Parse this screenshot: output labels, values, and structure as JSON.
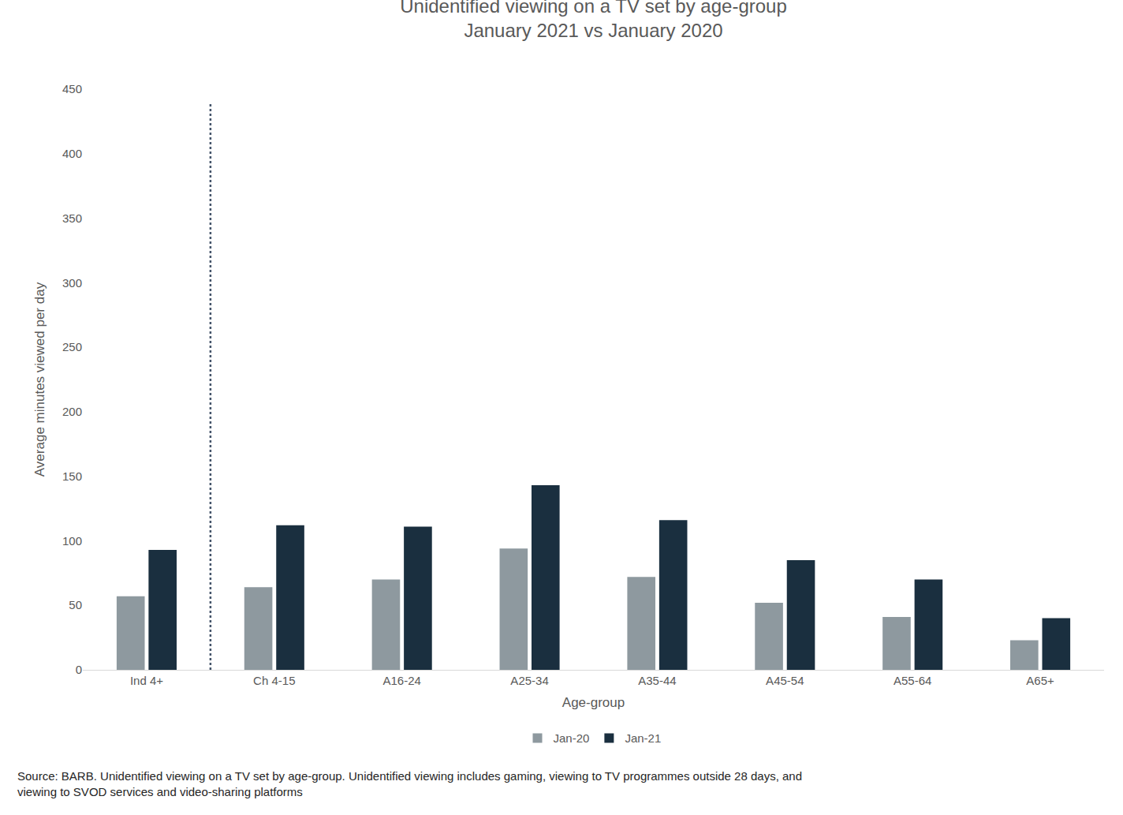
{
  "chart_data": {
    "type": "bar",
    "title": "Unidentified viewing on a TV set by age-group",
    "subtitle": "January 2021 vs January 2020",
    "x_label": "Age-group",
    "y_label": "Average minutes viewed per day",
    "categories": [
      "Ind 4+",
      "Ch 4-15",
      "A16-24",
      "A25-34",
      "A35-44",
      "A45-54",
      "A55-64",
      "A65+"
    ],
    "series": [
      {
        "name": "Jan-20",
        "color": "#8e999f",
        "values": [
          57,
          64,
          70,
          94,
          72,
          52,
          41,
          23
        ]
      },
      {
        "name": "Jan-21",
        "color": "#1a2f3f",
        "values": [
          93,
          112,
          111,
          143,
          116,
          85,
          70,
          40
        ]
      }
    ],
    "ylim": [
      0,
      450
    ],
    "yticks": [
      0,
      50,
      100,
      150,
      200,
      250,
      300,
      350,
      400,
      450
    ],
    "grid": false,
    "legend": "bottom",
    "annotations": [
      "Source: BARB. Unidentified viewing on a TV set by age-group. Unidentified viewing includes gaming, viewing to TV programmes outside 28 days, and viewing to SVOD services and video-sharing platforms"
    ]
  }
}
